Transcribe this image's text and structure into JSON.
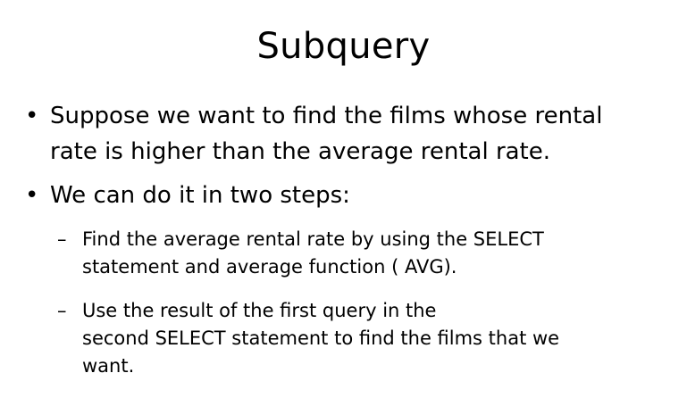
{
  "slide": {
    "title": "Subquery",
    "bullet_marker": "•",
    "sub_marker": "–",
    "bullets": [
      {
        "lines": [
          "Suppose we want to find the films whose rental",
          "rate is higher than the average rental rate."
        ]
      },
      {
        "lines": [
          "We can do it in two steps:"
        ],
        "subitems": [
          {
            "lines": [
              "Find the average rental rate by using the SELECT",
              "statement and average function ( AVG)."
            ]
          },
          {
            "lines": [
              "Use the result of the first query in the",
              "second SELECT statement to find the films that we",
              "want."
            ]
          }
        ]
      }
    ]
  }
}
